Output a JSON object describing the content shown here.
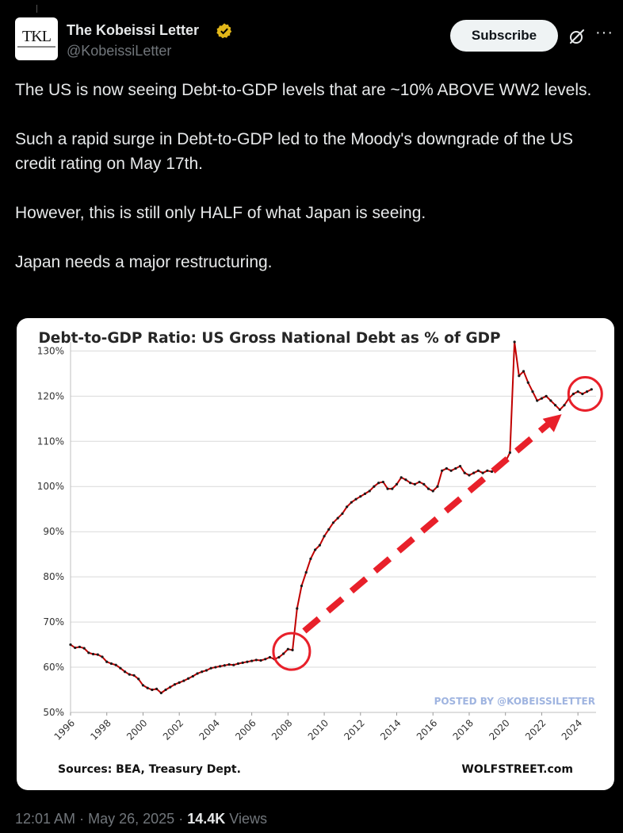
{
  "tweet": {
    "author_name": "The Kobeissi Letter",
    "handle": "@KobeissiLetter",
    "avatar_text": "TKL",
    "subscribe_label": "Subscribe",
    "more_label": "···",
    "paragraphs": [
      "The US is now seeing Debt-to-GDP levels that are ~10% ABOVE WW2 levels.",
      "Such a rapid surge in Debt-to-GDP led to the Moody's downgrade of the US credit rating on May 17th.",
      "However, this is still only HALF of what Japan is seeing.",
      "Japan needs a major restructuring."
    ],
    "time": "12:01 AM",
    "date": "May 26, 2025",
    "views_count": "14.4K",
    "views_label": "Views",
    "separator": "·",
    "colors": {
      "background": "#000000",
      "text": "#e7e9ea",
      "muted": "#71767b",
      "verified": "#e2b719"
    }
  },
  "chart_data": {
    "type": "line",
    "title": "Debt-to-GDP Ratio: US Gross National Debt as % of GDP",
    "source_label": "Sources: BEA, Treasury Dept.",
    "brand_label": "WOLFSTREET.com",
    "watermark": "POSTED BY @KOBEISSILETTER",
    "y_ticks": [
      "50%",
      "60%",
      "70%",
      "80%",
      "90%",
      "100%",
      "110%",
      "120%",
      "130%"
    ],
    "x_ticks": [
      "1996",
      "1998",
      "2000",
      "2002",
      "2004",
      "2006",
      "2008",
      "2010",
      "2012",
      "2014",
      "2016",
      "2018",
      "2020",
      "2022",
      "2024"
    ],
    "xlim": [
      1996,
      2025
    ],
    "ylim": [
      50,
      132
    ],
    "grid": true,
    "line_color": "#c00000",
    "annotation_color": "#e8202a",
    "series": [
      {
        "name": "",
        "x": [
          1996.0,
          1996.25,
          1996.5,
          1996.75,
          1997.0,
          1997.25,
          1997.5,
          1997.75,
          1998.0,
          1998.25,
          1998.5,
          1998.75,
          1999.0,
          1999.25,
          1999.5,
          1999.75,
          2000.0,
          2000.25,
          2000.5,
          2000.75,
          2001.0,
          2001.25,
          2001.5,
          2001.75,
          2002.0,
          2002.25,
          2002.5,
          2002.75,
          2003.0,
          2003.25,
          2003.5,
          2003.75,
          2004.0,
          2004.25,
          2004.5,
          2004.75,
          2005.0,
          2005.25,
          2005.5,
          2005.75,
          2006.0,
          2006.25,
          2006.5,
          2006.75,
          2007.0,
          2007.25,
          2007.5,
          2007.75,
          2008.0,
          2008.25,
          2008.5,
          2008.75,
          2009.0,
          2009.25,
          2009.5,
          2009.75,
          2010.0,
          2010.25,
          2010.5,
          2010.75,
          2011.0,
          2011.25,
          2011.5,
          2011.75,
          2012.0,
          2012.25,
          2012.5,
          2012.75,
          2013.0,
          2013.25,
          2013.5,
          2013.75,
          2014.0,
          2014.25,
          2014.5,
          2014.75,
          2015.0,
          2015.25,
          2015.5,
          2015.75,
          2016.0,
          2016.25,
          2016.5,
          2016.75,
          2017.0,
          2017.25,
          2017.5,
          2017.75,
          2018.0,
          2018.25,
          2018.5,
          2018.75,
          2019.0,
          2019.25,
          2019.5,
          2019.75,
          2020.0,
          2020.25,
          2020.5,
          2020.75,
          2021.0,
          2021.25,
          2021.5,
          2021.75,
          2022.0,
          2022.25,
          2022.5,
          2022.75,
          2023.0,
          2023.25,
          2023.5,
          2023.75,
          2024.0,
          2024.25,
          2024.5,
          2024.75
        ],
        "values": [
          65.0,
          64.3,
          64.5,
          64.2,
          63.2,
          62.9,
          62.8,
          62.3,
          61.2,
          60.8,
          60.5,
          59.8,
          59.0,
          58.4,
          58.2,
          57.4,
          56.0,
          55.4,
          55.0,
          55.2,
          54.3,
          55.0,
          55.6,
          56.2,
          56.6,
          57.0,
          57.5,
          58.0,
          58.6,
          59.0,
          59.3,
          59.8,
          60.0,
          60.2,
          60.4,
          60.6,
          60.5,
          60.8,
          61.0,
          61.2,
          61.4,
          61.6,
          61.5,
          61.8,
          62.2,
          61.8,
          62.2,
          63.0,
          64.0,
          63.8,
          73.0,
          78.0,
          81.0,
          84.0,
          86.0,
          87.0,
          89.0,
          90.5,
          92.0,
          93.0,
          94.0,
          95.5,
          96.5,
          97.2,
          97.8,
          98.4,
          99.0,
          100.0,
          100.8,
          101.0,
          99.5,
          99.5,
          100.5,
          102.0,
          101.5,
          100.8,
          100.5,
          101.0,
          100.5,
          99.5,
          99.0,
          100.0,
          103.5,
          104.0,
          103.5,
          104.0,
          104.5,
          103.0,
          102.5,
          103.0,
          103.5,
          103.0,
          103.5,
          103.3,
          104.0,
          104.5,
          105.5,
          107.5,
          132.0,
          124.5,
          125.5,
          123.0,
          121.0,
          119.0,
          119.5,
          120.0,
          119.0,
          118.0,
          117.0,
          118.0,
          119.5,
          120.5,
          121.0,
          120.5,
          121.0,
          121.5
        ]
      }
    ]
  }
}
